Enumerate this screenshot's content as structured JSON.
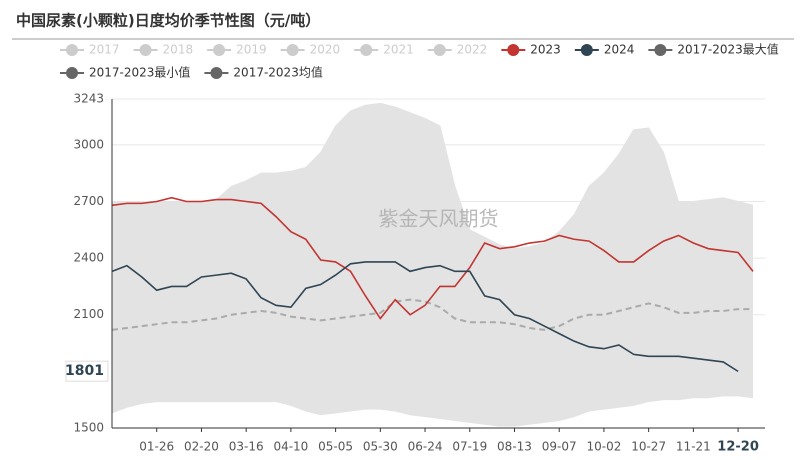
{
  "chart_data": {
    "type": "seasonal",
    "title": "中国尿素(小颗粒)日度均价季节性图（元/吨）",
    "watermark": "紫金天风期货",
    "categories": [
      null,
      null,
      null,
      "01-26",
      null,
      null,
      "02-20",
      null,
      null,
      "03-16",
      null,
      null,
      "04-10",
      null,
      null,
      "05-05",
      null,
      null,
      "05-30",
      null,
      null,
      "06-24",
      null,
      null,
      "07-19",
      null,
      null,
      "08-13",
      null,
      null,
      "09-07",
      null,
      null,
      "10-02",
      null,
      null,
      "10-27",
      null,
      null,
      "11-21",
      null,
      null,
      "12-20",
      null
    ],
    "ylim": [
      1500,
      3243
    ],
    "yticks": [
      1500,
      2100,
      2400,
      2700,
      3000,
      3243
    ],
    "grid": true,
    "crosshair": {
      "y": 1801,
      "x": "12-20"
    },
    "series": [
      {
        "name": "2017",
        "color": "#cccccc",
        "hidden": true
      },
      {
        "name": "2018",
        "color": "#cccccc",
        "hidden": true
      },
      {
        "name": "2019",
        "color": "#cccccc",
        "hidden": true
      },
      {
        "name": "2020",
        "color": "#cccccc",
        "hidden": true
      },
      {
        "name": "2021",
        "color": "#cccccc",
        "hidden": true
      },
      {
        "name": "2022",
        "color": "#cccccc",
        "hidden": true
      },
      {
        "name": "2023",
        "color": "#c23531",
        "style": "line",
        "values": [
          2680,
          2690,
          2690,
          2700,
          2720,
          2700,
          2700,
          2710,
          2710,
          2700,
          2690,
          2620,
          2540,
          2500,
          2390,
          2380,
          2330,
          2200,
          2080,
          2180,
          2100,
          2150,
          2250,
          2250,
          2350,
          2480,
          2450,
          2460,
          2480,
          2490,
          2520,
          2500,
          2490,
          2440,
          2380,
          2380,
          2440,
          2490,
          2520,
          2480,
          2450,
          2440,
          2430,
          2330
        ]
      },
      {
        "name": "2024",
        "color": "#2f4554",
        "style": "line",
        "values": [
          2330,
          2360,
          2300,
          2230,
          2250,
          2250,
          2300,
          2310,
          2320,
          2290,
          2190,
          2150,
          2140,
          2240,
          2260,
          2310,
          2370,
          2380,
          2380,
          2380,
          2330,
          2350,
          2360,
          2330,
          2330,
          2200,
          2180,
          2100,
          2080,
          2040,
          2000,
          1960,
          1930,
          1920,
          1940,
          1890,
          1880,
          1880,
          1880,
          1870,
          1860,
          1850,
          1800,
          null
        ]
      },
      {
        "name": "2017-2023最大值",
        "color": "#666666",
        "style": "band-top",
        "values": [
          2700,
          2700,
          2700,
          2700,
          2700,
          2700,
          2700,
          2710,
          2780,
          2810,
          2850,
          2850,
          2860,
          2880,
          2960,
          3100,
          3180,
          3210,
          3220,
          3200,
          3170,
          3140,
          3100,
          2780,
          2550,
          2510,
          2470,
          2450,
          2460,
          2480,
          2540,
          2630,
          2780,
          2850,
          2950,
          3080,
          3090,
          2960,
          2700,
          2700,
          2710,
          2720,
          2700,
          2680
        ]
      },
      {
        "name": "2017-2023最小值",
        "color": "#666666",
        "style": "band-bottom",
        "values": [
          1580,
          1610,
          1630,
          1640,
          1640,
          1640,
          1640,
          1640,
          1640,
          1640,
          1640,
          1640,
          1620,
          1590,
          1570,
          1580,
          1590,
          1600,
          1600,
          1590,
          1570,
          1560,
          1550,
          1540,
          1530,
          1520,
          1510,
          1510,
          1520,
          1530,
          1540,
          1560,
          1590,
          1600,
          1610,
          1620,
          1640,
          1650,
          1650,
          1660,
          1660,
          1670,
          1670,
          1660
        ]
      },
      {
        "name": "2017-2023均值",
        "color": "#666666",
        "style": "dashed",
        "values": [
          2020,
          2030,
          2040,
          2050,
          2060,
          2060,
          2070,
          2080,
          2100,
          2110,
          2120,
          2110,
          2090,
          2080,
          2070,
          2080,
          2090,
          2100,
          2110,
          2170,
          2180,
          2170,
          2140,
          2080,
          2060,
          2060,
          2060,
          2050,
          2030,
          2020,
          2040,
          2080,
          2100,
          2100,
          2120,
          2140,
          2160,
          2140,
          2110,
          2110,
          2120,
          2120,
          2130,
          2130
        ]
      }
    ]
  }
}
